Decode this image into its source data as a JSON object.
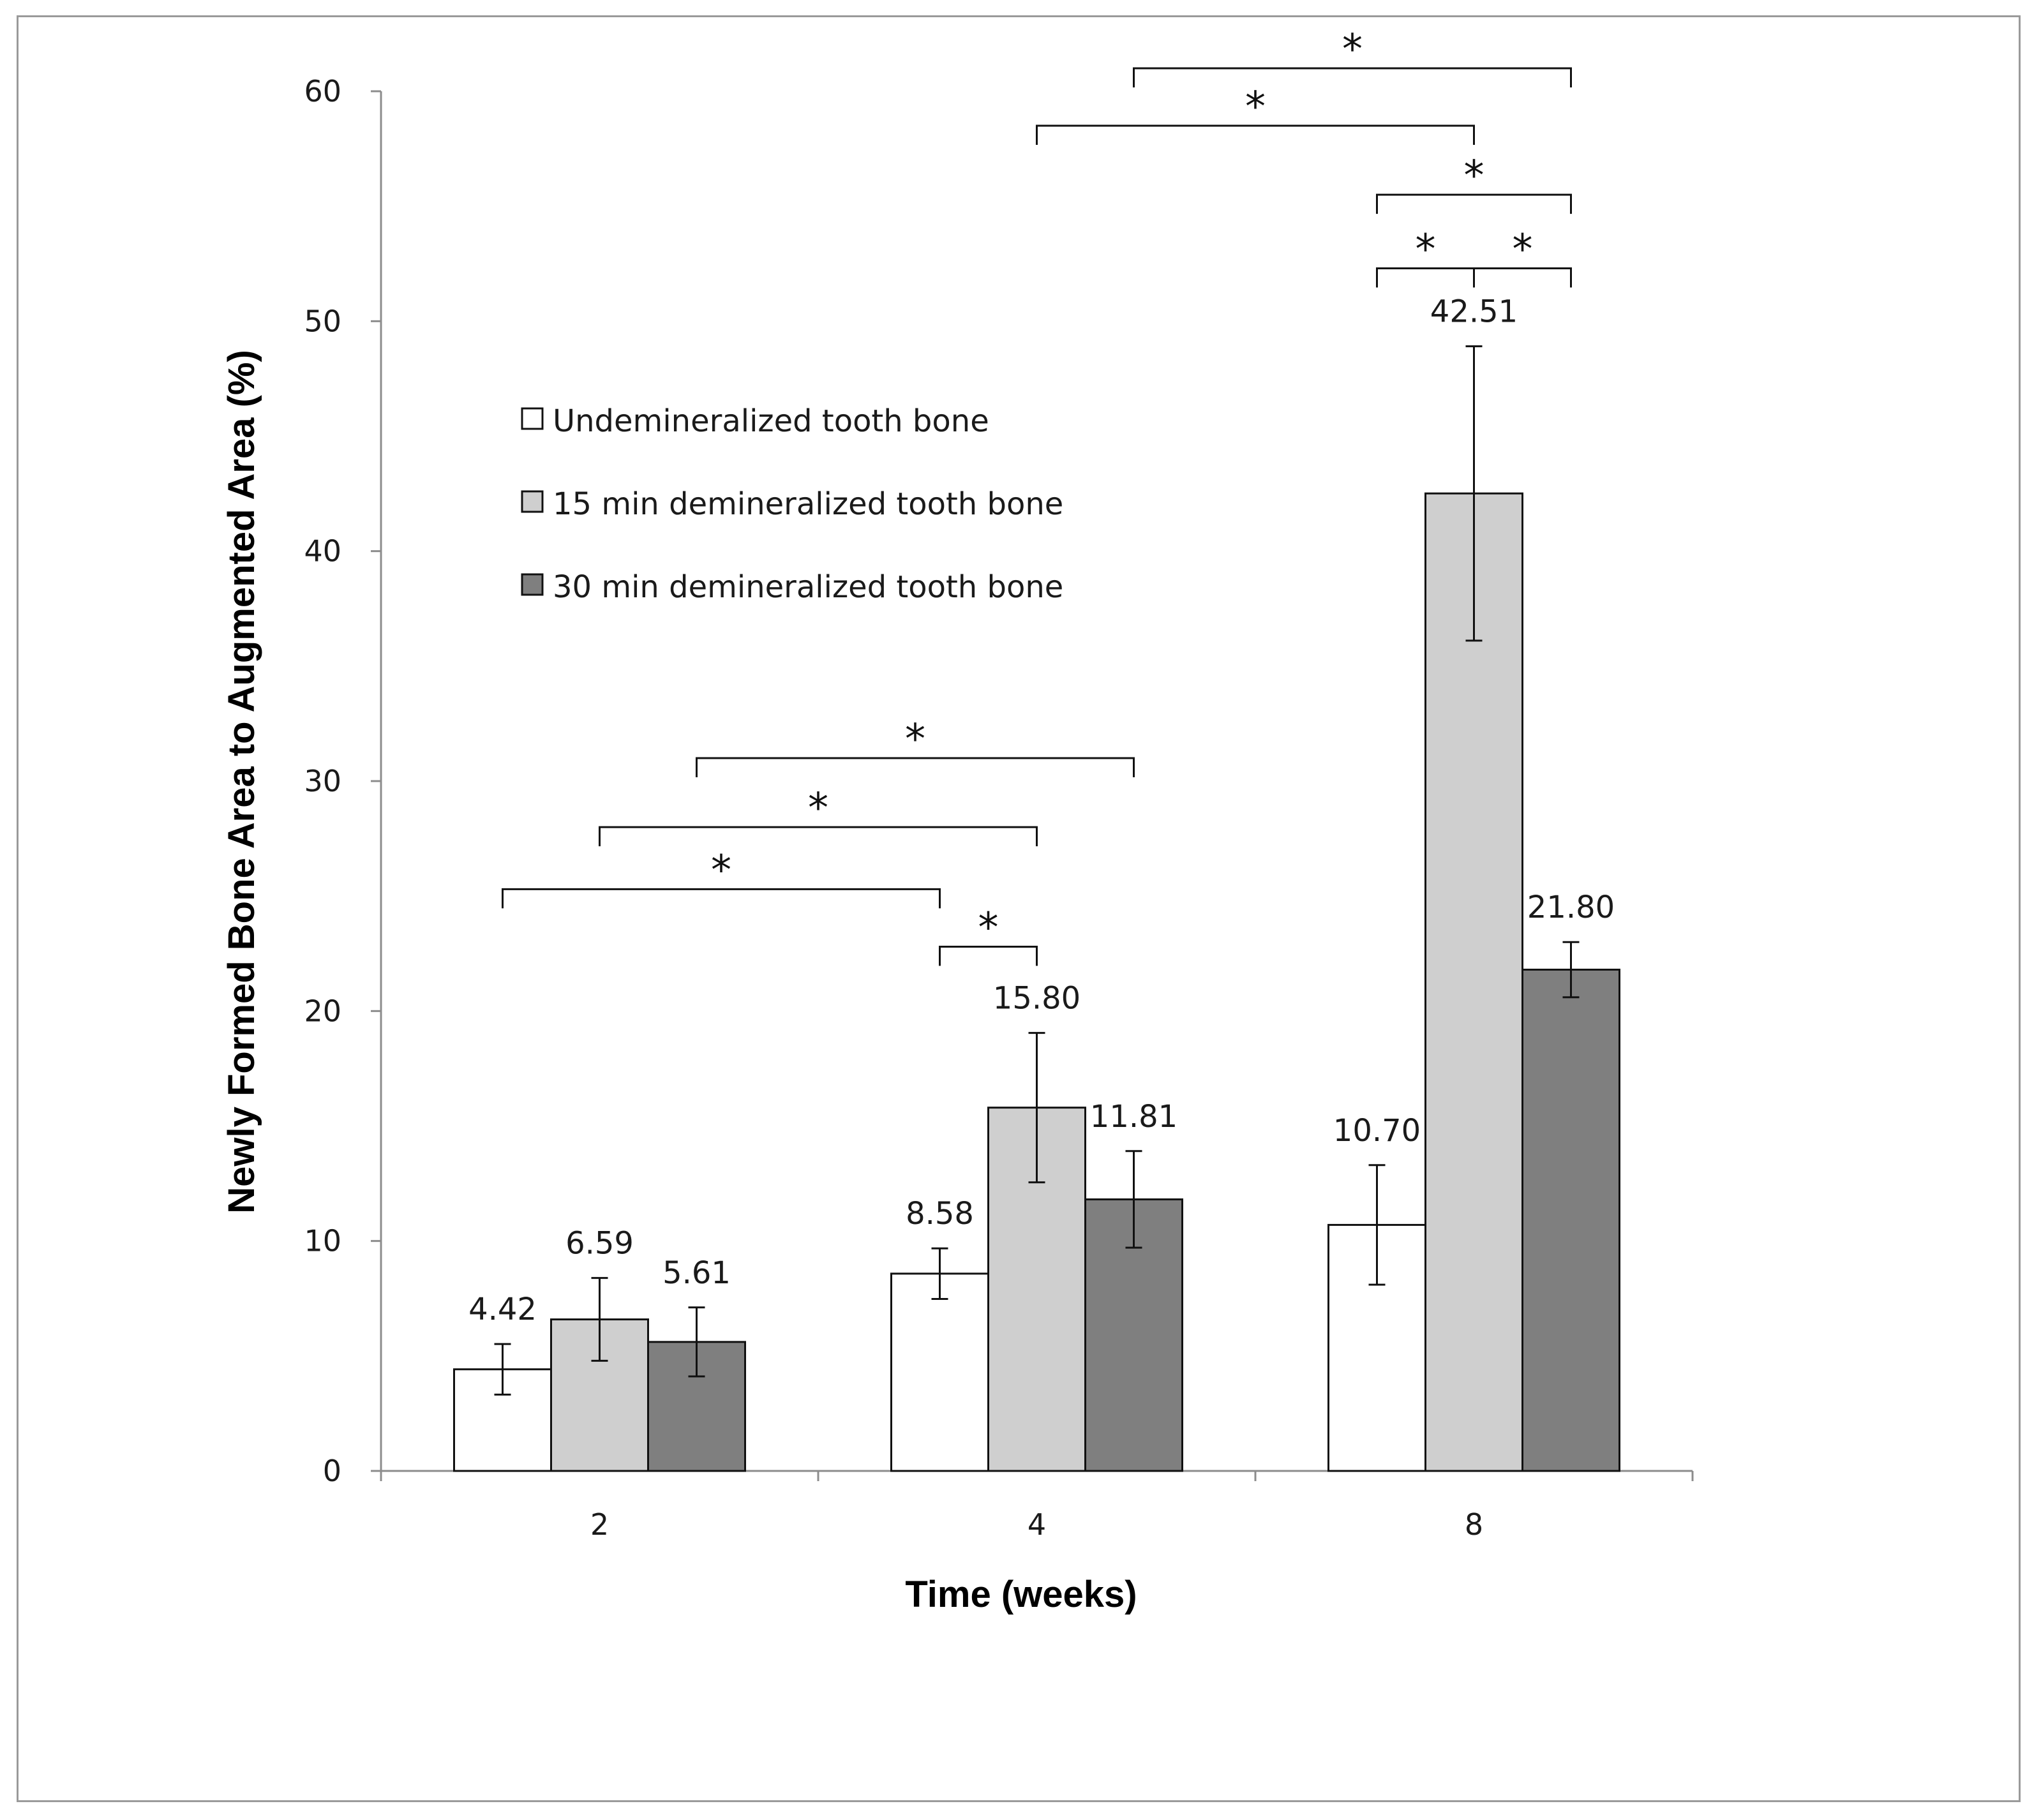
{
  "chart_data": {
    "type": "bar",
    "title": "",
    "xlabel": "Time (weeks)",
    "ylabel": "Newly Formed Bone Area to Augmented Area (%)",
    "categories": [
      "2",
      "4",
      "8"
    ],
    "ylim": [
      0,
      60
    ],
    "yticks": [
      0,
      10,
      20,
      30,
      40,
      50,
      60
    ],
    "grid": false,
    "legend_position": "upper-left",
    "series": [
      {
        "name": "Undemineralized tooth bone",
        "color": "#ffffff",
        "values": [
          4.42,
          8.58,
          10.7
        ],
        "errors": [
          1.1,
          1.1,
          2.6
        ],
        "labels": [
          "4.42",
          "8.58",
          "10.70"
        ]
      },
      {
        "name": "15 min demineralized tooth bone",
        "color": "#cfcfcf",
        "values": [
          6.59,
          15.8,
          42.51
        ],
        "errors": [
          1.8,
          3.25,
          6.4
        ],
        "labels": [
          "6.59",
          "15.80",
          "42.51"
        ]
      },
      {
        "name": "30 min demineralized tooth bone",
        "color": "#7f7f7f",
        "values": [
          5.61,
          11.81,
          21.8
        ],
        "errors": [
          1.5,
          2.1,
          1.2
        ],
        "labels": [
          "5.61",
          "11.81",
          "21.80"
        ]
      }
    ],
    "significance": [
      {
        "from": [
          0,
          0
        ],
        "to": [
          1,
          0
        ],
        "y": 25.3,
        "label": "*"
      },
      {
        "from": [
          0,
          1
        ],
        "to": [
          1,
          1
        ],
        "y": 28.0,
        "label": "*"
      },
      {
        "from": [
          0,
          2
        ],
        "to": [
          1,
          2
        ],
        "y": 31.0,
        "label": "*"
      },
      {
        "from": [
          1,
          0
        ],
        "to": [
          1,
          1
        ],
        "y": 22.8,
        "label": "*"
      },
      {
        "from": [
          1,
          1
        ],
        "to": [
          2,
          1
        ],
        "y": 58.5,
        "label": "*"
      },
      {
        "from": [
          1,
          2
        ],
        "to": [
          2,
          2
        ],
        "y": 61.0,
        "label": "*"
      },
      {
        "from": [
          2,
          0
        ],
        "to": [
          2,
          2
        ],
        "y": 55.5,
        "label": "*"
      },
      {
        "from": [
          2,
          0
        ],
        "to": [
          2,
          1
        ],
        "y": 52.3,
        "label": "*"
      },
      {
        "from": [
          2,
          1
        ],
        "to": [
          2,
          2
        ],
        "y": 52.3,
        "label": "*"
      }
    ]
  }
}
